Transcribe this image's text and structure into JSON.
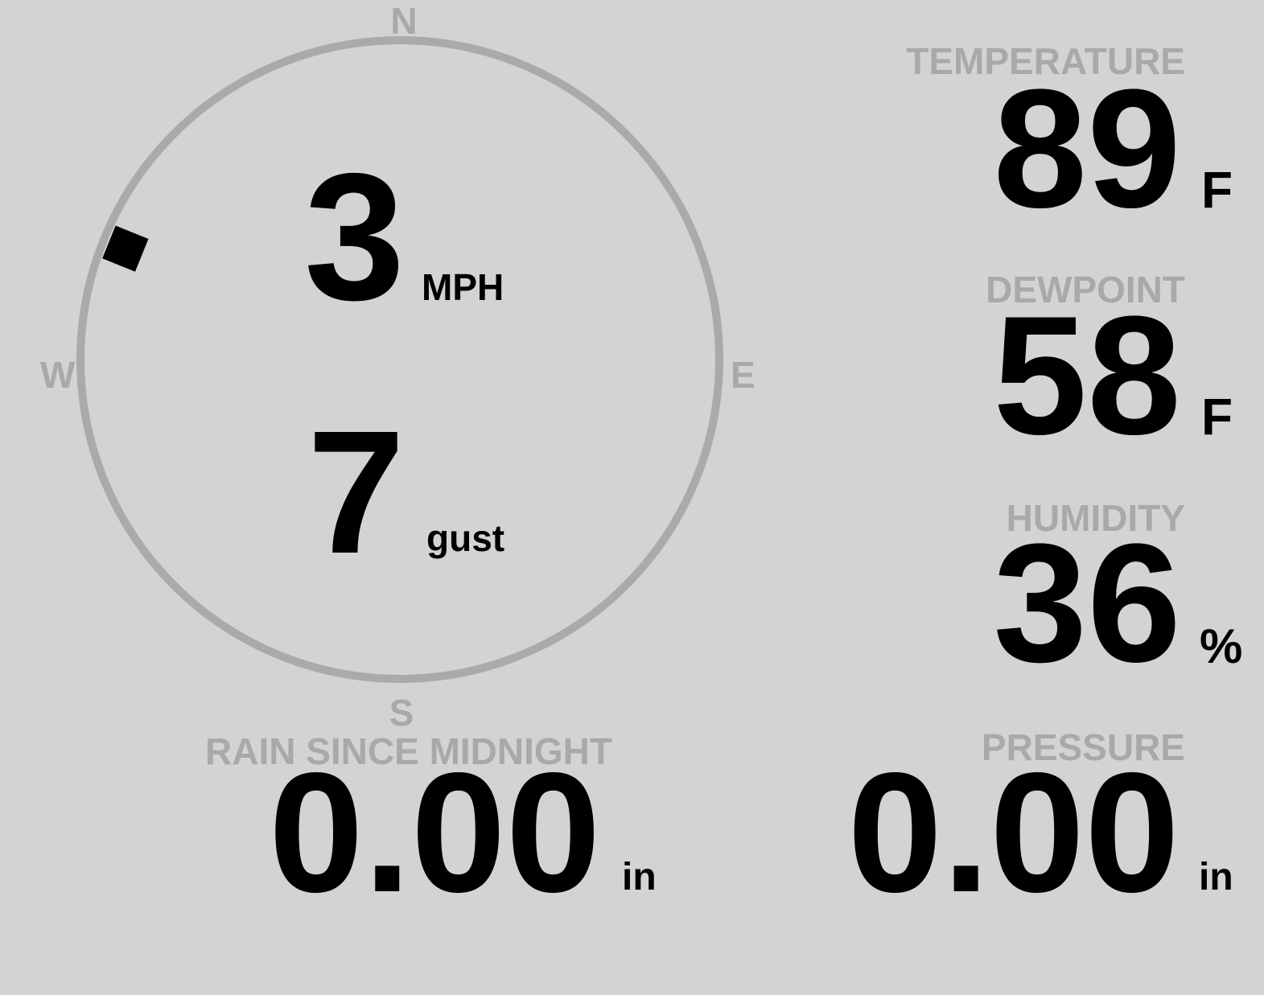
{
  "wind": {
    "compass": {
      "north": "N",
      "east": "E",
      "south": "S",
      "west": "W"
    },
    "direction_degrees": 292,
    "speed": "3",
    "speed_unit": "MPH",
    "gust": "7",
    "gust_unit": "gust",
    "ring_color": "#aaaaaa",
    "marker_color": "#000000"
  },
  "temperature": {
    "label": "TEMPERATURE",
    "value": "89",
    "unit": "F"
  },
  "dewpoint": {
    "label": "DEWPOINT",
    "value": "58",
    "unit": "F"
  },
  "humidity": {
    "label": "HUMIDITY",
    "value": "36",
    "unit": "%"
  },
  "rain": {
    "label": "RAIN SINCE MIDNIGHT",
    "value": "0.00",
    "unit": "in"
  },
  "pressure": {
    "label": "PRESSURE",
    "value": "0.00",
    "unit": "in"
  },
  "colors": {
    "background": "#d3d3d3",
    "label": "#a9a9a9",
    "value": "#000000"
  }
}
